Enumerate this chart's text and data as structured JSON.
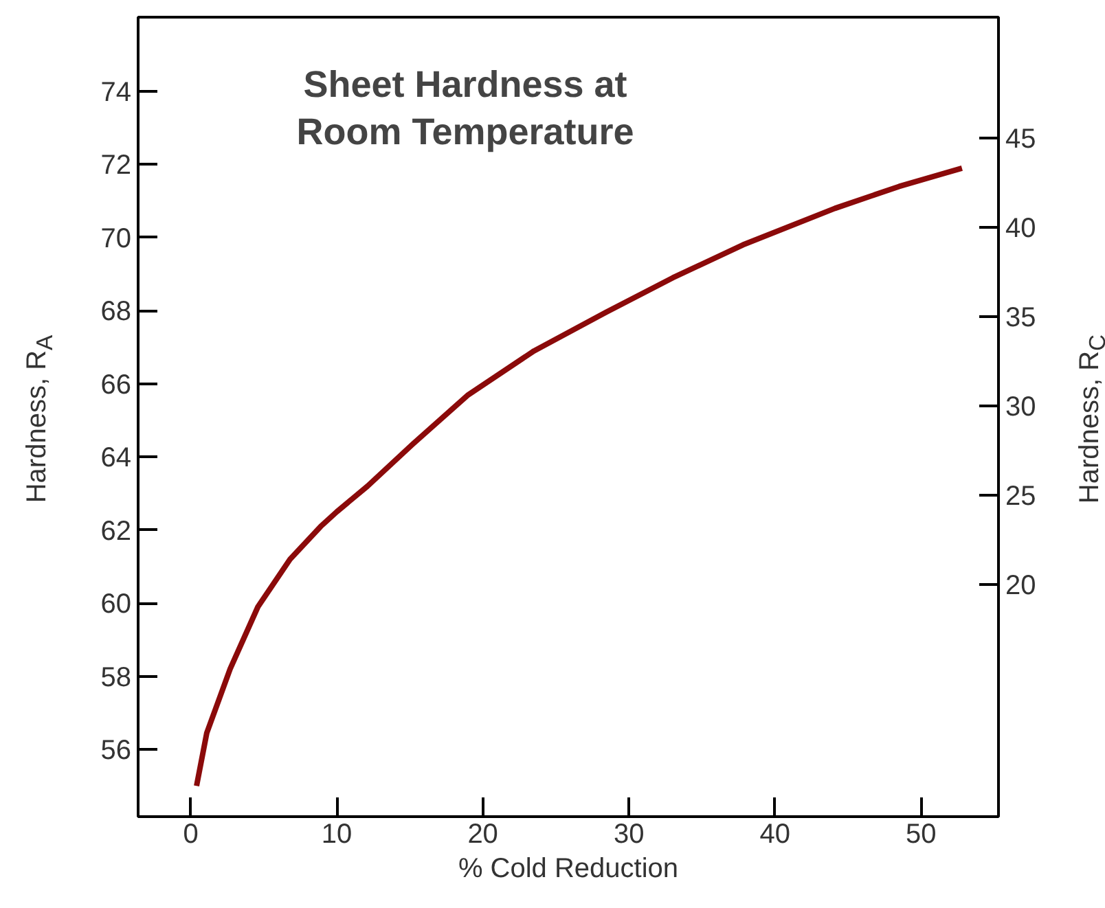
{
  "chart_data": {
    "type": "line",
    "title": "Sheet Hardness at\nRoom Temperature",
    "xlabel": "% Cold Reduction",
    "ylabel": "Hardness, R$_{A}$",
    "y2label": "Hardness, R$_{C}$",
    "x": [
      0.4,
      1.1,
      2.7,
      4.6,
      6.8,
      8.9,
      10,
      12.1,
      15.2,
      19.0,
      23.5,
      28.4,
      33,
      37.8,
      44.1,
      48.5,
      52.8
    ],
    "series": [
      {
        "color": "#8b0a0a",
        "values": [
          55.0,
          56.45,
          58.2,
          59.9,
          61.2,
          62.1,
          62.5,
          63.2,
          64.35,
          65.7,
          66.9,
          67.95,
          68.9,
          69.8,
          70.8,
          71.4,
          71.9
        ]
      }
    ],
    "xlim": [
      -3.6,
      55.3
    ],
    "xticks": [
      0,
      10,
      20,
      30,
      40,
      50
    ],
    "ylim": [
      54.16,
      76.03
    ],
    "yticks": [
      56,
      58,
      60,
      62,
      64,
      66,
      68,
      70,
      72,
      74
    ],
    "y2lim": [
      7.0,
      51.77
    ],
    "y2ticks": [
      20,
      25,
      30,
      35,
      40,
      45
    ],
    "grid": false,
    "marker": "none",
    "line_style": "solid"
  }
}
